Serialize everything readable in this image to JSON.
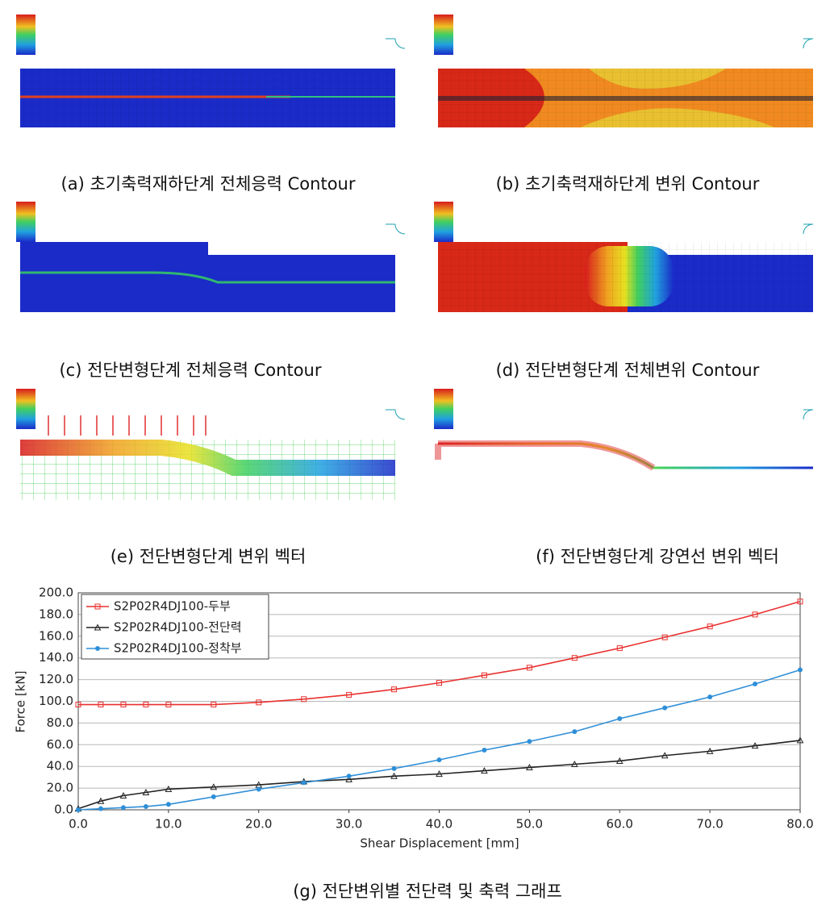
{
  "panels": [
    {
      "caption": "(a) 초기축력재하단계 전체응력 Contour"
    },
    {
      "caption": "(b) 초기축력재하단계 변위 Contour"
    },
    {
      "caption": "(c) 전단변형단계 전체응력 Contour"
    },
    {
      "caption": "(d) 전단변형단계 전체변위 Contour"
    },
    {
      "caption": "(e) 전단변형단계 변위 벡터"
    },
    {
      "caption": "(f) 전단변형단계 강연선 변위 벡터"
    }
  ],
  "chart_data": {
    "type": "line",
    "caption": "(g) 전단변위별 전단력 및 축력 그래프",
    "xlabel": "Shear Displacement [mm]",
    "ylabel": "Force [kN]",
    "x": [
      0,
      2.5,
      5,
      7.5,
      10,
      15,
      20,
      25,
      30,
      35,
      40,
      45,
      50,
      55,
      60,
      65,
      70,
      75,
      80
    ],
    "series": [
      {
        "name": "S2P02R4DJ100-두부",
        "color": "#e8312f",
        "marker": "square",
        "values": [
          97,
          97,
          97,
          97,
          97,
          97,
          99,
          102,
          106,
          111,
          117,
          124,
          131,
          140,
          149,
          159,
          169,
          180,
          192
        ]
      },
      {
        "name": "S2P02R4DJ100-전단력",
        "color": "#222222",
        "marker": "triangle",
        "values": [
          1,
          8,
          13,
          16,
          19,
          21,
          23,
          26,
          28,
          31,
          33,
          36,
          39,
          42,
          45,
          50,
          54,
          59,
          64
        ]
      },
      {
        "name": "S2P02R4DJ100-정착부",
        "color": "#2f8fd8",
        "marker": "circle",
        "values": [
          0,
          1,
          2,
          3,
          5,
          12,
          19,
          25,
          31,
          38,
          46,
          55,
          63,
          72,
          84,
          94,
          104,
          116,
          129
        ]
      }
    ],
    "xlim": [
      0,
      80
    ],
    "xticks": [
      {
        "value": 0,
        "label": "0.0"
      },
      {
        "value": 10,
        "label": "10.0"
      },
      {
        "value": 20,
        "label": "20.0"
      },
      {
        "value": 30,
        "label": "30.0"
      },
      {
        "value": 40,
        "label": "40.0"
      },
      {
        "value": 50,
        "label": "50.0"
      },
      {
        "value": 60,
        "label": "60.0"
      },
      {
        "value": 70,
        "label": "70.0"
      },
      {
        "value": 80,
        "label": "80.0"
      }
    ],
    "ylim": [
      0,
      200
    ],
    "yticks": [
      {
        "value": 0,
        "label": "0.0"
      },
      {
        "value": 20,
        "label": "20.0"
      },
      {
        "value": 40,
        "label": "40.0"
      },
      {
        "value": 60,
        "label": "60.0"
      },
      {
        "value": 80,
        "label": "80.0"
      },
      {
        "value": 100,
        "label": "100.0"
      },
      {
        "value": 120,
        "label": "120.0"
      },
      {
        "value": 140,
        "label": "140.0"
      },
      {
        "value": 160,
        "label": "160.0"
      },
      {
        "value": 180,
        "label": "180.0"
      },
      {
        "value": 200,
        "label": "200.0"
      }
    ],
    "grid": true,
    "legend": "upper left"
  }
}
